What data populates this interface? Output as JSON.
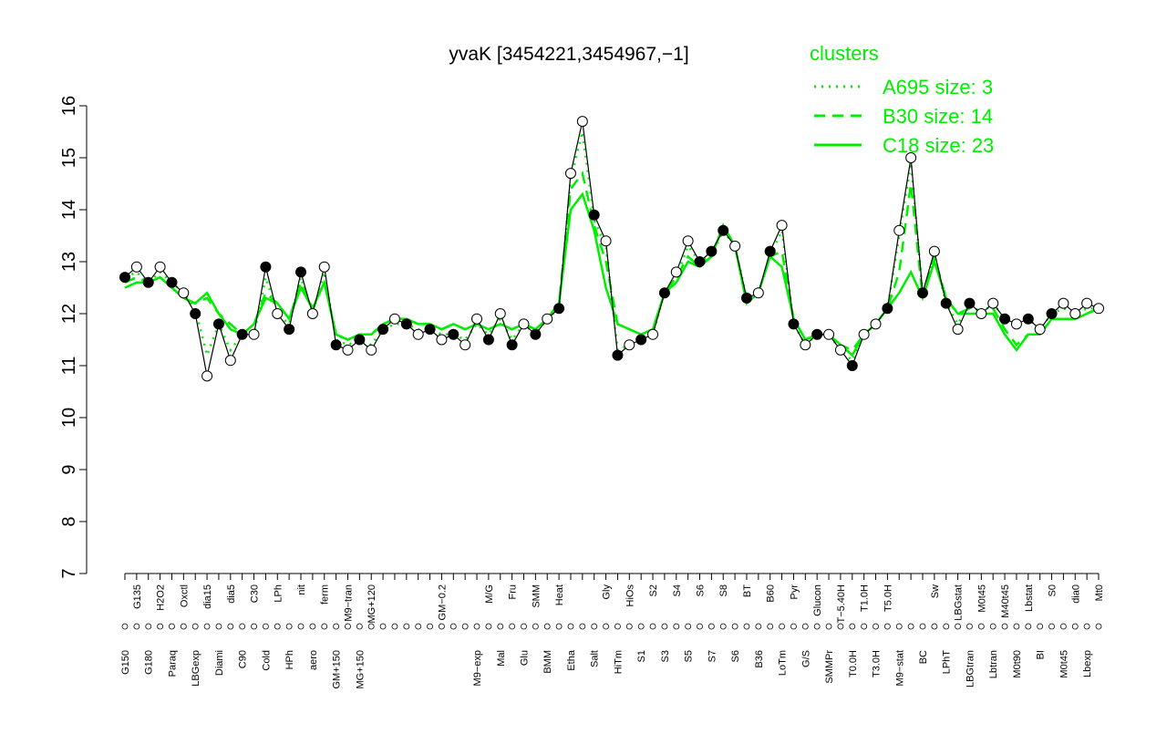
{
  "chart_data": {
    "type": "line",
    "title": "yvaK [3454221,3454967,−1]",
    "categories": [
      "G150",
      "G135",
      "G180",
      "H2O2",
      "Paraq",
      "Oxctl",
      "LBGexp",
      "dia15",
      "Diami",
      "dia5",
      "C90",
      "C30",
      "Cold",
      "LPh",
      "HPh",
      "nit",
      "aero",
      "ferm",
      "GM+150",
      "M9−tran",
      "MG+150",
      "MG+120",
      null,
      null,
      null,
      null,
      null,
      "GM−0.2",
      null,
      null,
      "M9−exp",
      "M/G",
      "Mal",
      "Fru",
      "Glu",
      "SMM",
      "BMM",
      "Heat",
      "Etha",
      null,
      "Salt",
      "Gly",
      "HiTm",
      "HiOs",
      "S1",
      "S2",
      "S3",
      "S4",
      "S5",
      "S6",
      "S7",
      "S8",
      "S6",
      "BT",
      "B36",
      "B60",
      "LoTm",
      "Pyr",
      "G/S",
      "Glucon",
      "SMMPr",
      "T−5.40H",
      "T0.0H",
      "T1.0H",
      "T3.0H",
      "T5.0H",
      "M9−stat",
      null,
      "BC",
      "Sw",
      "LPhT",
      "LBGstat",
      "LBGtran",
      "M0t45",
      "Lbtran",
      "M40t45",
      "M0t90",
      "Lbstat",
      "BI",
      "S0",
      "M0t45",
      "dia0",
      "Lbexp",
      "Mt0"
    ],
    "values": [
      12.7,
      12.9,
      12.6,
      12.9,
      12.6,
      12.4,
      12.0,
      10.8,
      11.8,
      11.1,
      11.6,
      11.6,
      12.9,
      12.0,
      11.7,
      12.8,
      12.0,
      12.9,
      11.4,
      11.3,
      11.5,
      11.3,
      11.7,
      11.9,
      11.8,
      11.6,
      11.7,
      11.5,
      11.6,
      11.4,
      11.9,
      11.5,
      12.0,
      11.4,
      11.8,
      11.6,
      11.9,
      12.1,
      14.7,
      15.7,
      13.9,
      13.4,
      11.2,
      11.4,
      11.5,
      11.6,
      12.4,
      12.8,
      13.4,
      13.0,
      13.2,
      13.6,
      13.3,
      12.3,
      12.4,
      13.2,
      13.7,
      11.8,
      11.4,
      11.6,
      11.6,
      11.3,
      11.0,
      11.6,
      11.8,
      12.1,
      13.6,
      15.0,
      12.4,
      13.2,
      12.2,
      11.7,
      12.2,
      12.0,
      12.2,
      11.9,
      11.8,
      11.9,
      11.7,
      12.0,
      12.2,
      12.0,
      12.2,
      12.1
    ],
    "point_fill": [
      "#000",
      "#fff",
      "#000",
      "#fff",
      "#000",
      "#fff",
      "#000",
      "#fff",
      "#000",
      "#fff",
      "#000",
      "#fff",
      "#000",
      "#fff",
      "#000",
      "#000",
      "#fff",
      "#fff",
      "#000",
      "#fff",
      "#000",
      "#fff",
      "#000",
      "#fff",
      "#000",
      "#fff",
      "#000",
      "#fff",
      "#000",
      "#fff",
      "#fff",
      "#000",
      "#fff",
      "#000",
      "#fff",
      "#000",
      "#fff",
      "#000",
      "#fff",
      "#fff",
      "#000",
      "#fff",
      "#000",
      "#fff",
      "#000",
      "#fff",
      "#000",
      "#fff",
      "#fff",
      "#000",
      "#000",
      "#000",
      "#fff",
      "#000",
      "#fff",
      "#000",
      "#fff",
      "#000",
      "#fff",
      "#000",
      "#fff",
      "#fff",
      "#000",
      "#fff",
      "#fff",
      "#000",
      "#fff",
      "#fff",
      "#000",
      "#fff",
      "#000",
      "#fff",
      "#000",
      "#fff",
      "#fff",
      "#000",
      "#fff",
      "#000",
      "#fff",
      "#000",
      "#fff",
      "#fff",
      "#fff",
      "#fff"
    ],
    "line_color": "#000",
    "series": [
      {
        "name": "A695 size: 3",
        "color": "#00ee00",
        "style": "dotted",
        "values": [
          12.7,
          12.8,
          12.6,
          12.8,
          12.6,
          12.4,
          12.1,
          11.2,
          11.8,
          11.3,
          11.6,
          11.6,
          12.7,
          12.0,
          11.8,
          12.7,
          12.0,
          12.8,
          11.5,
          11.4,
          11.5,
          11.4,
          11.7,
          11.8,
          11.8,
          11.7,
          11.7,
          11.6,
          11.6,
          11.5,
          11.8,
          11.6,
          11.9,
          11.5,
          11.8,
          11.6,
          11.9,
          12.1,
          14.6,
          15.5,
          13.8,
          13.3,
          11.3,
          11.4,
          11.5,
          11.6,
          12.4,
          12.7,
          13.3,
          13.0,
          13.1,
          13.6,
          13.3,
          12.3,
          12.4,
          13.1,
          13.6,
          11.8,
          11.4,
          11.6,
          11.6,
          11.3,
          11.1,
          11.6,
          11.8,
          12.1,
          13.5,
          14.9,
          12.4,
          13.1,
          12.2,
          11.8,
          12.2,
          12.0,
          12.2,
          11.9,
          11.8,
          11.9,
          11.7,
          12.0,
          12.1,
          12.0,
          12.1,
          12.1
        ]
      },
      {
        "name": "B30 size: 14",
        "color": "#00ee00",
        "style": "dashed",
        "values": [
          12.6,
          12.7,
          12.6,
          12.7,
          12.5,
          12.3,
          12.2,
          12.3,
          12.0,
          11.8,
          11.6,
          11.8,
          12.4,
          12.2,
          11.9,
          12.6,
          12.1,
          12.6,
          11.6,
          11.5,
          11.6,
          11.6,
          11.8,
          11.9,
          11.9,
          11.8,
          11.8,
          11.7,
          11.8,
          11.7,
          11.8,
          11.7,
          11.8,
          11.7,
          11.8,
          11.7,
          11.9,
          12.2,
          14.4,
          14.7,
          13.7,
          13.0,
          11.8,
          11.7,
          11.6,
          11.7,
          12.4,
          12.7,
          13.1,
          12.9,
          13.1,
          13.7,
          13.3,
          12.2,
          12.4,
          13.1,
          13.2,
          11.9,
          11.5,
          11.6,
          11.6,
          11.4,
          11.3,
          11.6,
          11.8,
          12.1,
          12.8,
          14.5,
          12.3,
          13.1,
          12.3,
          12.0,
          12.1,
          12.0,
          12.1,
          11.7,
          11.4,
          11.6,
          11.6,
          11.9,
          11.9,
          11.9,
          12.0,
          12.1
        ]
      },
      {
        "name": "C18 size: 23",
        "color": "#00ee00",
        "style": "solid",
        "values": [
          12.5,
          12.6,
          12.6,
          12.7,
          12.5,
          12.3,
          12.2,
          12.4,
          12.0,
          11.7,
          11.6,
          11.8,
          12.3,
          12.2,
          11.9,
          12.5,
          12.1,
          12.6,
          11.6,
          11.5,
          11.6,
          11.6,
          11.8,
          11.9,
          11.9,
          11.8,
          11.8,
          11.7,
          11.8,
          11.7,
          11.8,
          11.7,
          11.8,
          11.7,
          11.8,
          11.7,
          11.9,
          12.2,
          14.0,
          14.3,
          13.6,
          12.5,
          11.8,
          11.7,
          11.6,
          11.7,
          12.4,
          12.6,
          13.0,
          12.9,
          13.1,
          13.7,
          13.3,
          12.2,
          12.4,
          13.1,
          12.9,
          11.9,
          11.5,
          11.6,
          11.6,
          11.4,
          11.2,
          11.6,
          11.8,
          12.1,
          12.4,
          12.8,
          12.3,
          13.0,
          12.3,
          12.0,
          12.0,
          12.0,
          12.0,
          11.6,
          11.3,
          11.6,
          11.6,
          11.9,
          11.9,
          11.9,
          12.0,
          12.1
        ]
      }
    ],
    "legend_title": "clusters",
    "ylim": [
      7,
      16
    ],
    "yticks": [
      7,
      8,
      9,
      10,
      11,
      12,
      13,
      14,
      15,
      16
    ]
  }
}
